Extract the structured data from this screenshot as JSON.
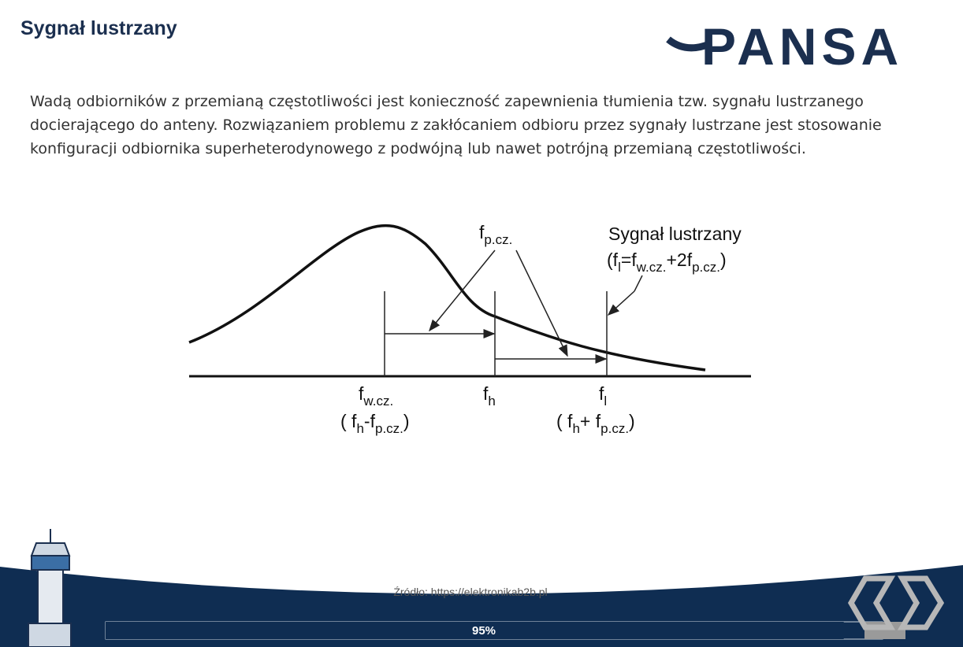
{
  "header": {
    "title": "Sygnał lustrzany",
    "logo": "PANSA"
  },
  "body": {
    "paragraph": "Wadą odbiorników z przemianą częstotliwości jest konieczność zapewnienia tłumienia tzw. sygnału lustrzanego docierającego do anteny. Rozwiązaniem problemu z zakłócaniem odbioru przez sygnały lustrzane jest stosowanie konfiguracji odbiornika superheterodynowego z podwójną lub nawet potrójną przemianą częstotliwości."
  },
  "diagram": {
    "fp_label": [
      "f",
      "p.cz."
    ],
    "mirror_title": "Sygnał lustrzany",
    "mirror_formula": [
      "(f",
      "l",
      "=f",
      "w.cz.",
      "+2f",
      "p.cz.",
      ")"
    ],
    "fw_label": [
      "f",
      "w.cz."
    ],
    "fw_formula": [
      "( f",
      "h",
      "-f",
      "p.cz.",
      ")"
    ],
    "fh_label": [
      "f",
      "h"
    ],
    "fl_label": [
      "f",
      "l"
    ],
    "fl_formula": [
      "( f",
      "h",
      "+ f",
      "p.cz.",
      ")"
    ]
  },
  "footer": {
    "source": "Źródło: https://elektronikab2b.pl",
    "progress": {
      "value": 95,
      "label": "95%"
    }
  }
}
